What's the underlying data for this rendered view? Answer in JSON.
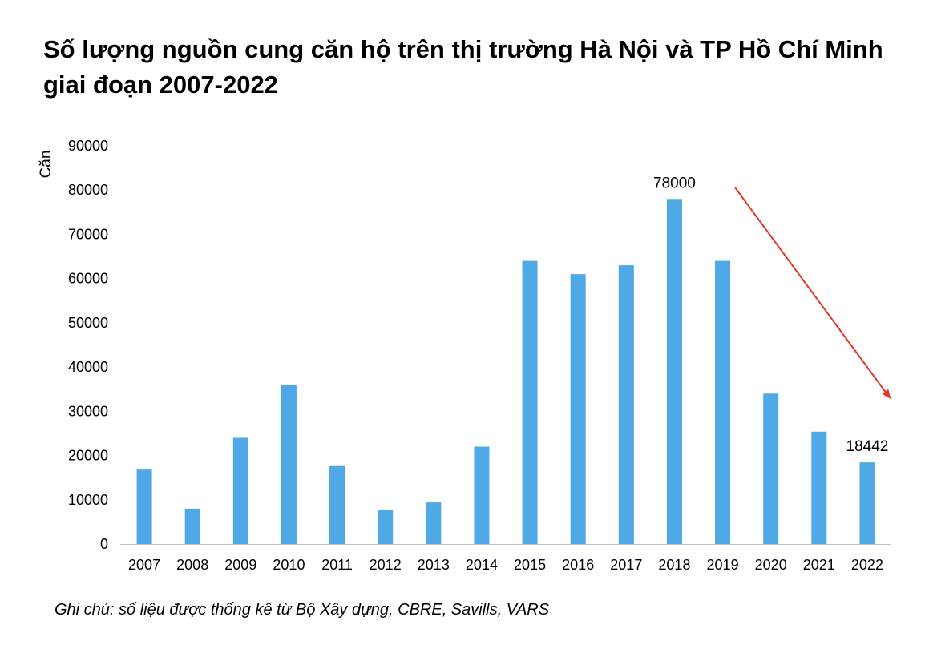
{
  "chart_data": {
    "type": "bar",
    "title": "Số lượng nguồn cung căn hộ trên thị trường Hà Nội và TP Hồ Chí Minh giai đoạn 2007-2022",
    "xlabel": "",
    "ylabel": "Căn",
    "categories": [
      "2007",
      "2008",
      "2009",
      "2010",
      "2011",
      "2012",
      "2013",
      "2014",
      "2015",
      "2016",
      "2017",
      "2018",
      "2019",
      "2020",
      "2021",
      "2022"
    ],
    "values": [
      17000,
      8000,
      24000,
      36000,
      17800,
      7600,
      9400,
      22000,
      64000,
      61000,
      63000,
      78000,
      64000,
      34000,
      25400,
      18442
    ],
    "ylim": [
      0,
      90000
    ],
    "yticks": [
      0,
      10000,
      20000,
      30000,
      40000,
      50000,
      60000,
      70000,
      80000,
      90000
    ],
    "data_labels": [
      {
        "category": "2018",
        "text": "78000"
      },
      {
        "category": "2022",
        "text": "18442"
      }
    ],
    "annotation": "downward-trend-arrow",
    "bar_color": "#4EA9E6",
    "arrow_color": "#E2382B",
    "grid": false
  },
  "footnote": "Ghi chú: số liệu được thống kê từ  Bộ Xây dựng, CBRE, Savills, VARS"
}
